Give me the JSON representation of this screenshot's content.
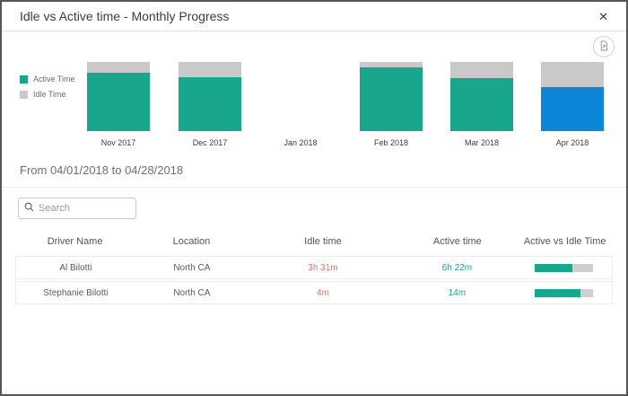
{
  "window": {
    "title": "Idle vs Active time - Monthly Progress"
  },
  "icons": {
    "close_glyph": "✕",
    "export_icon": "export-report-icon",
    "search_icon": "search-icon"
  },
  "colors": {
    "active": "#18a78c",
    "idle": "#c9c9c9",
    "selected_active": "#0b86d8",
    "idle_text": "#e8735c",
    "active_text": "#18a78c"
  },
  "chart_data": {
    "type": "bar",
    "stacked": true,
    "title": "Idle vs Active time - Monthly Progress",
    "categories": [
      "Nov 2017",
      "Dec 2017",
      "Jan 2018",
      "Feb 2018",
      "Mar 2018",
      "Apr 2018"
    ],
    "series": [
      {
        "name": "Active Time",
        "values": [
          84,
          78,
          0,
          92,
          77,
          64
        ]
      },
      {
        "name": "Idle Time",
        "values": [
          16,
          22,
          0,
          8,
          23,
          36
        ]
      }
    ],
    "units": "percent-of-month",
    "selected_category": "Apr 2018",
    "legend_position": "left",
    "grid": false
  },
  "filter": {
    "date_range": "From 04/01/2018 to 04/28/2018",
    "search_placeholder": "Search"
  },
  "table": {
    "columns": [
      "Driver Name",
      "Location",
      "Idle time",
      "Active time",
      "Active vs Idle Time"
    ],
    "rows": [
      {
        "driver": "Al Bilotti",
        "location": "North CA",
        "idle_time": "3h 31m",
        "active_time": "6h 22m",
        "active_pct": 64
      },
      {
        "driver": "Stephanie Bilotti",
        "location": "North CA",
        "idle_time": "4m",
        "active_time": "14m",
        "active_pct": 78
      }
    ]
  }
}
